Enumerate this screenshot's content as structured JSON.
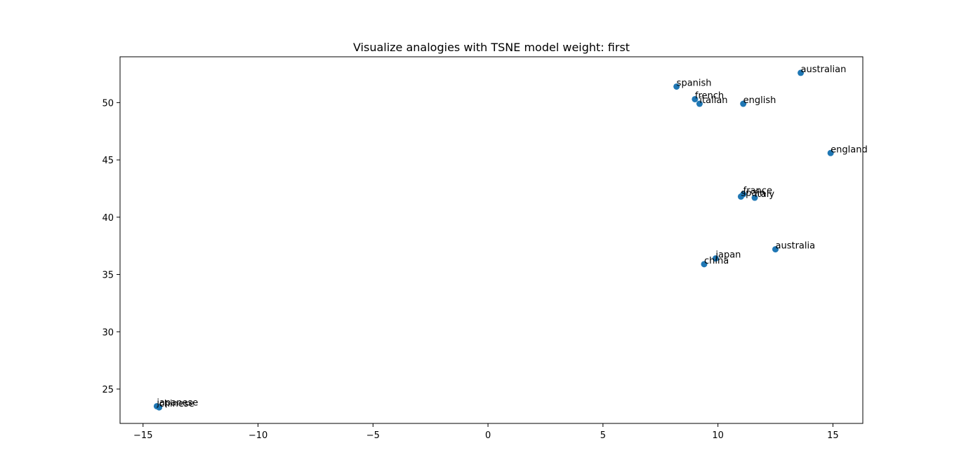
{
  "chart_data": {
    "type": "scatter",
    "title": "Visualize analogies with TSNE  model weight: first",
    "xlabel": "",
    "ylabel": "",
    "xlim": [
      -16,
      16.3
    ],
    "ylim": [
      22.0,
      54.0
    ],
    "grid": false,
    "color": "#1f77b4",
    "xticks": [
      {
        "value": -15,
        "label": "−15"
      },
      {
        "value": -10,
        "label": "−10"
      },
      {
        "value": -5,
        "label": "−5"
      },
      {
        "value": 0,
        "label": "0"
      },
      {
        "value": 5,
        "label": "5"
      },
      {
        "value": 10,
        "label": "10"
      },
      {
        "value": 15,
        "label": "15"
      }
    ],
    "yticks": [
      {
        "value": 25,
        "label": "25"
      },
      {
        "value": 30,
        "label": "30"
      },
      {
        "value": 35,
        "label": "35"
      },
      {
        "value": 40,
        "label": "40"
      },
      {
        "value": 45,
        "label": "45"
      },
      {
        "value": 50,
        "label": "50"
      }
    ],
    "points": [
      {
        "label": "australian",
        "x": 13.6,
        "y": 52.6
      },
      {
        "label": "spanish",
        "x": 8.2,
        "y": 51.4
      },
      {
        "label": "french",
        "x": 9.0,
        "y": 50.3
      },
      {
        "label": "italian",
        "x": 9.2,
        "y": 49.9
      },
      {
        "label": "english",
        "x": 11.1,
        "y": 49.9
      },
      {
        "label": "england",
        "x": 14.9,
        "y": 45.6
      },
      {
        "label": "france",
        "x": 11.1,
        "y": 42.0
      },
      {
        "label": "spain",
        "x": 11.0,
        "y": 41.8
      },
      {
        "label": "italy",
        "x": 11.6,
        "y": 41.7
      },
      {
        "label": "australia",
        "x": 12.5,
        "y": 37.2
      },
      {
        "label": "japan",
        "x": 9.9,
        "y": 36.4
      },
      {
        "label": "china",
        "x": 9.4,
        "y": 35.9
      },
      {
        "label": "japanese",
        "x": -14.4,
        "y": 23.5
      },
      {
        "label": "chinese",
        "x": -14.3,
        "y": 23.4
      }
    ]
  }
}
